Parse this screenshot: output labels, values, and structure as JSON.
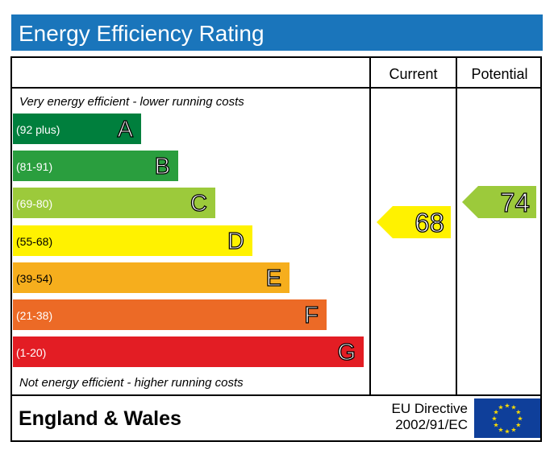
{
  "header": {
    "title": "Energy Efficiency Rating"
  },
  "columns": {
    "current": "Current",
    "potential": "Potential"
  },
  "notes": {
    "top": "Very energy efficient - lower running costs",
    "bottom": "Not energy efficient - higher running costs"
  },
  "footer": {
    "region": "England & Wales",
    "directive_line1": "EU Directive",
    "directive_line2": "2002/91/EC",
    "flag_icon": "eu-flag-icon"
  },
  "chart_data": {
    "type": "bar",
    "title": "Energy Efficiency Rating",
    "categories": [
      "A",
      "B",
      "C",
      "D",
      "E",
      "F",
      "G"
    ],
    "ranges": [
      "(92 plus)",
      "(81-91)",
      "(69-80)",
      "(55-68)",
      "(39-54)",
      "(21-38)",
      "(1-20)"
    ],
    "colors": [
      "#007f3d",
      "#2a9e3e",
      "#9cca3b",
      "#fff200",
      "#f6ae1d",
      "#ec6a26",
      "#e31d24"
    ],
    "current": {
      "value": 68,
      "band": "D",
      "color": "#fff200"
    },
    "potential": {
      "value": 74,
      "band": "C",
      "color": "#9cca3b"
    }
  }
}
